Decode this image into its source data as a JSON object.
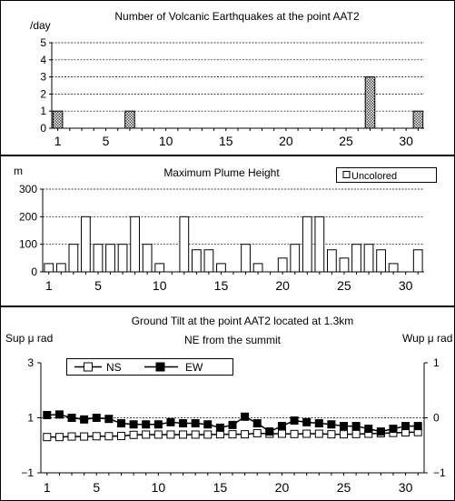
{
  "chart_data": [
    {
      "type": "bar",
      "title": "Number of Volcanic Earthquakes at the point AAT2",
      "ylabel": "/day",
      "xlabel": "",
      "x": [
        1,
        7,
        27,
        31
      ],
      "values": [
        1,
        1,
        3,
        1
      ],
      "xlim": [
        1,
        31
      ],
      "ylim": [
        0,
        5
      ],
      "x_ticks": [
        1,
        5,
        10,
        15,
        20,
        25,
        30
      ],
      "y_ticks": [
        0,
        1,
        2,
        3,
        4,
        5
      ],
      "grid": true,
      "bar_fill": "crosshatch"
    },
    {
      "type": "bar",
      "title": "Maximum Plume Height",
      "ylabel": "m",
      "xlabel": "",
      "legend": {
        "position": "top-right",
        "entries": [
          "Uncolored"
        ]
      },
      "x": [
        1,
        2,
        3,
        4,
        5,
        6,
        7,
        8,
        9,
        10,
        12,
        13,
        14,
        15,
        17,
        18,
        20,
        21,
        22,
        23,
        24,
        25,
        26,
        27,
        28,
        29,
        31
      ],
      "values": [
        30,
        30,
        100,
        200,
        100,
        100,
        100,
        200,
        100,
        30,
        200,
        80,
        80,
        30,
        100,
        30,
        50,
        100,
        200,
        200,
        80,
        50,
        100,
        100,
        80,
        30,
        80
      ],
      "xlim": [
        1,
        31
      ],
      "ylim": [
        0,
        300
      ],
      "x_ticks": [
        1,
        5,
        10,
        15,
        20,
        25,
        30
      ],
      "y_ticks": [
        0,
        100,
        200,
        300
      ],
      "grid": true
    },
    {
      "type": "line",
      "title_line1": "Ground Tilt at the point AAT2 located at 1.3km",
      "title_line2": "NE from the summit",
      "ylabel_left": "Sup μ rad",
      "ylabel_right": "Wup μ rad",
      "x": [
        1,
        2,
        3,
        4,
        5,
        6,
        7,
        8,
        9,
        10,
        11,
        12,
        13,
        14,
        15,
        16,
        17,
        18,
        19,
        20,
        21,
        22,
        23,
        24,
        25,
        26,
        27,
        28,
        29,
        30,
        31
      ],
      "series": [
        {
          "name": "NS",
          "axis": "left",
          "marker": "open-square",
          "values": [
            0.3,
            0.3,
            0.32,
            0.32,
            0.33,
            0.33,
            0.34,
            0.38,
            0.39,
            0.39,
            0.39,
            0.39,
            0.39,
            0.39,
            0.4,
            0.4,
            0.4,
            0.44,
            0.42,
            0.42,
            0.41,
            0.42,
            0.42,
            0.4,
            0.4,
            0.41,
            0.42,
            0.44,
            0.45,
            0.47,
            0.48
          ]
        },
        {
          "name": "EW",
          "axis": "right",
          "marker": "filled-square",
          "values": [
            0.05,
            0.06,
            0.0,
            -0.03,
            0.0,
            -0.02,
            -0.1,
            -0.12,
            -0.12,
            -0.12,
            -0.08,
            -0.1,
            -0.1,
            -0.12,
            -0.18,
            -0.13,
            0.02,
            -0.1,
            -0.25,
            -0.15,
            -0.05,
            -0.08,
            -0.1,
            -0.12,
            -0.15,
            -0.15,
            -0.2,
            -0.25,
            -0.2,
            -0.15,
            -0.15
          ]
        }
      ],
      "xlim": [
        1,
        31
      ],
      "ylim_left": [
        -1,
        3
      ],
      "ylim_right": [
        -1,
        1
      ],
      "x_ticks": [
        1,
        5,
        10,
        15,
        20,
        25,
        30
      ],
      "y_ticks_left": [
        -1,
        1,
        3
      ],
      "y_ticks_right": [
        -1,
        0,
        1
      ],
      "legend": {
        "position": "top-left"
      },
      "grid": true
    }
  ]
}
